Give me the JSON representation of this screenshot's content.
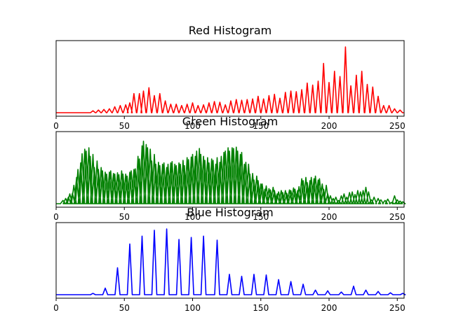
{
  "chart_data": [
    {
      "type": "line",
      "title": "Red Histogram",
      "xlim": [
        0,
        255
      ],
      "xticks": [
        0,
        50,
        100,
        150,
        200,
        250
      ],
      "yticks_visible": false,
      "grid": false,
      "color": "#ff0000",
      "peaks": [
        [
          27,
          0.03
        ],
        [
          31,
          0.04
        ],
        [
          35,
          0.05
        ],
        [
          39,
          0.06
        ],
        [
          43,
          0.09
        ],
        [
          47,
          0.11
        ],
        [
          51,
          0.12
        ],
        [
          54,
          0.15
        ],
        [
          57,
          0.29
        ],
        [
          61,
          0.29
        ],
        [
          64,
          0.33
        ],
        [
          68,
          0.38
        ],
        [
          72,
          0.26
        ],
        [
          76,
          0.29
        ],
        [
          80,
          0.18
        ],
        [
          84,
          0.13
        ],
        [
          88,
          0.13
        ],
        [
          92,
          0.11
        ],
        [
          96,
          0.13
        ],
        [
          100,
          0.15
        ],
        [
          104,
          0.11
        ],
        [
          108,
          0.12
        ],
        [
          112,
          0.15
        ],
        [
          116,
          0.17
        ],
        [
          120,
          0.16
        ],
        [
          124,
          0.12
        ],
        [
          128,
          0.18
        ],
        [
          132,
          0.2
        ],
        [
          136,
          0.19
        ],
        [
          140,
          0.2
        ],
        [
          144,
          0.21
        ],
        [
          148,
          0.25
        ],
        [
          152,
          0.21
        ],
        [
          156,
          0.26
        ],
        [
          160,
          0.28
        ],
        [
          164,
          0.22
        ],
        [
          168,
          0.31
        ],
        [
          172,
          0.33
        ],
        [
          176,
          0.32
        ],
        [
          180,
          0.35
        ],
        [
          184,
          0.45
        ],
        [
          188,
          0.42
        ],
        [
          192,
          0.48
        ],
        [
          196,
          0.75
        ],
        [
          200,
          0.46
        ],
        [
          204,
          0.63
        ],
        [
          208,
          0.55
        ],
        [
          212,
          1.0
        ],
        [
          216,
          0.41
        ],
        [
          220,
          0.57
        ],
        [
          224,
          0.63
        ],
        [
          228,
          0.43
        ],
        [
          232,
          0.39
        ],
        [
          236,
          0.25
        ],
        [
          240,
          0.11
        ],
        [
          244,
          0.11
        ],
        [
          248,
          0.06
        ],
        [
          252,
          0.04
        ]
      ]
    },
    {
      "type": "line",
      "title": "Green Histogram",
      "xlim": [
        0,
        255
      ],
      "xticks": [
        0,
        50,
        100,
        150,
        200,
        250
      ],
      "yticks_visible": false,
      "grid": false,
      "color": "#008000",
      "peaks": [
        [
          5,
          0.05
        ],
        [
          7,
          0.08
        ],
        [
          9,
          0.1
        ],
        [
          10,
          0.15
        ],
        [
          12,
          0.16
        ],
        [
          13,
          0.28
        ],
        [
          15,
          0.4
        ],
        [
          16,
          0.52
        ],
        [
          18,
          0.62
        ],
        [
          19,
          0.76
        ],
        [
          21,
          0.83
        ],
        [
          22,
          0.8
        ],
        [
          24,
          0.85
        ],
        [
          25,
          0.72
        ],
        [
          27,
          0.75
        ],
        [
          28,
          0.55
        ],
        [
          30,
          0.65
        ],
        [
          31,
          0.52
        ],
        [
          33,
          0.55
        ],
        [
          34,
          0.5
        ],
        [
          36,
          0.48
        ],
        [
          37,
          0.45
        ],
        [
          39,
          0.48
        ],
        [
          40,
          0.5
        ],
        [
          42,
          0.46
        ],
        [
          43,
          0.45
        ],
        [
          45,
          0.47
        ],
        [
          46,
          0.44
        ],
        [
          48,
          0.5
        ],
        [
          49,
          0.45
        ],
        [
          51,
          0.45
        ],
        [
          52,
          0.42
        ],
        [
          54,
          0.48
        ],
        [
          55,
          0.5
        ],
        [
          57,
          0.52
        ],
        [
          58,
          0.53
        ],
        [
          60,
          0.72
        ],
        [
          61,
          0.68
        ],
        [
          63,
          0.88
        ],
        [
          64,
          0.95
        ],
        [
          66,
          0.9
        ],
        [
          67,
          0.85
        ],
        [
          69,
          0.83
        ],
        [
          70,
          0.65
        ],
        [
          72,
          0.75
        ],
        [
          73,
          0.6
        ],
        [
          75,
          0.63
        ],
        [
          76,
          0.58
        ],
        [
          78,
          0.6
        ],
        [
          79,
          0.62
        ],
        [
          81,
          0.55
        ],
        [
          82,
          0.6
        ],
        [
          84,
          0.62
        ],
        [
          85,
          0.64
        ],
        [
          87,
          0.6
        ],
        [
          88,
          0.58
        ],
        [
          90,
          0.62
        ],
        [
          91,
          0.6
        ],
        [
          93,
          0.66
        ],
        [
          94,
          0.58
        ],
        [
          96,
          0.7
        ],
        [
          97,
          0.67
        ],
        [
          99,
          0.71
        ],
        [
          100,
          0.75
        ],
        [
          102,
          0.72
        ],
        [
          103,
          0.8
        ],
        [
          105,
          0.84
        ],
        [
          106,
          0.75
        ],
        [
          108,
          0.72
        ],
        [
          109,
          0.66
        ],
        [
          111,
          0.7
        ],
        [
          112,
          0.62
        ],
        [
          114,
          0.68
        ],
        [
          115,
          0.66
        ],
        [
          117,
          0.6
        ],
        [
          118,
          0.7
        ],
        [
          120,
          0.63
        ],
        [
          121,
          0.72
        ],
        [
          123,
          0.78
        ],
        [
          124,
          0.8
        ],
        [
          126,
          0.85
        ],
        [
          127,
          0.8
        ],
        [
          129,
          0.85
        ],
        [
          130,
          0.84
        ],
        [
          132,
          0.86
        ],
        [
          133,
          0.8
        ],
        [
          135,
          0.75
        ],
        [
          136,
          0.78
        ],
        [
          138,
          0.6
        ],
        [
          139,
          0.63
        ],
        [
          141,
          0.6
        ],
        [
          142,
          0.45
        ],
        [
          144,
          0.46
        ],
        [
          145,
          0.36
        ],
        [
          147,
          0.42
        ],
        [
          148,
          0.35
        ],
        [
          150,
          0.3
        ],
        [
          151,
          0.3
        ],
        [
          153,
          0.22
        ],
        [
          154,
          0.27
        ],
        [
          156,
          0.23
        ],
        [
          157,
          0.21
        ],
        [
          159,
          0.25
        ],
        [
          160,
          0.2
        ],
        [
          162,
          0.15
        ],
        [
          163,
          0.18
        ],
        [
          165,
          0.2
        ],
        [
          166,
          0.17
        ],
        [
          168,
          0.2
        ],
        [
          169,
          0.16
        ],
        [
          171,
          0.21
        ],
        [
          172,
          0.2
        ],
        [
          174,
          0.24
        ],
        [
          175,
          0.22
        ],
        [
          177,
          0.2
        ],
        [
          178,
          0.26
        ],
        [
          180,
          0.38
        ],
        [
          181,
          0.35
        ],
        [
          183,
          0.4
        ],
        [
          184,
          0.32
        ],
        [
          186,
          0.35
        ],
        [
          187,
          0.4
        ],
        [
          189,
          0.38
        ],
        [
          190,
          0.42
        ],
        [
          192,
          0.36
        ],
        [
          193,
          0.38
        ],
        [
          195,
          0.3
        ],
        [
          196,
          0.22
        ],
        [
          198,
          0.28
        ],
        [
          199,
          0.15
        ],
        [
          201,
          0.12
        ],
        [
          203,
          0.08
        ],
        [
          205,
          0.1
        ],
        [
          207,
          0.05
        ],
        [
          209,
          0.12
        ],
        [
          211,
          0.15
        ],
        [
          213,
          0.1
        ],
        [
          215,
          0.17
        ],
        [
          217,
          0.18
        ],
        [
          219,
          0.14
        ],
        [
          221,
          0.2
        ],
        [
          223,
          0.18
        ],
        [
          225,
          0.2
        ],
        [
          227,
          0.25
        ],
        [
          229,
          0.18
        ],
        [
          231,
          0.06
        ],
        [
          233,
          0.1
        ],
        [
          236,
          0.08
        ],
        [
          238,
          0.06
        ],
        [
          241,
          0.05
        ],
        [
          243,
          0.07
        ],
        [
          246,
          0.02
        ],
        [
          248,
          0.12
        ],
        [
          250,
          0.06
        ],
        [
          252,
          0.04
        ],
        [
          254,
          0.03
        ]
      ]
    },
    {
      "type": "line",
      "title": "Blue Histogram",
      "xlim": [
        0,
        255
      ],
      "xticks": [
        0,
        50,
        100,
        150,
        200,
        250
      ],
      "yticks_visible": false,
      "grid": false,
      "color": "#0000ff",
      "peaks": [
        [
          27,
          0.02
        ],
        [
          36,
          0.1
        ],
        [
          45,
          0.41
        ],
        [
          54,
          0.77
        ],
        [
          63,
          0.89
        ],
        [
          72,
          0.98
        ],
        [
          81,
          1.0
        ],
        [
          90,
          0.84
        ],
        [
          99,
          0.87
        ],
        [
          108,
          0.89
        ],
        [
          118,
          0.83
        ],
        [
          127,
          0.31
        ],
        [
          136,
          0.28
        ],
        [
          145,
          0.31
        ],
        [
          154,
          0.3
        ],
        [
          163,
          0.23
        ],
        [
          172,
          0.2
        ],
        [
          181,
          0.16
        ],
        [
          190,
          0.07
        ],
        [
          199,
          0.06
        ],
        [
          209,
          0.04
        ],
        [
          218,
          0.13
        ],
        [
          227,
          0.07
        ],
        [
          236,
          0.05
        ],
        [
          245,
          0.03
        ],
        [
          254,
          0.02
        ]
      ]
    }
  ]
}
